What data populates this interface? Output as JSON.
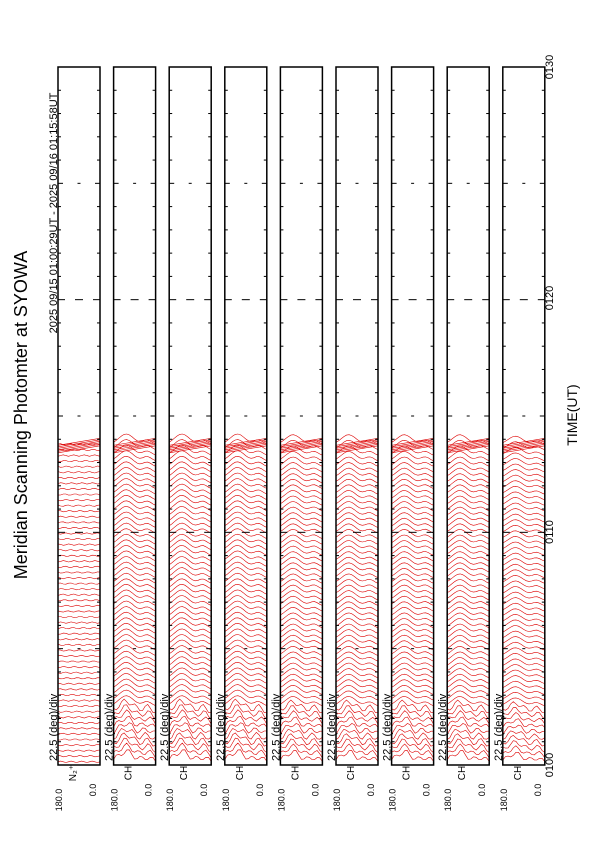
{
  "chart_data": {
    "type": "line",
    "title": "Meridian Scanning Photomter at SYOWA",
    "subtitle": "2025 09/16 01:15:58UT",
    "time_range_label": "2025 09/15 01:00:29UT - 2025 09/16 01:15:58UT",
    "xlabel": "TIME(UT)",
    "x_ticks": [
      "0100",
      "0110",
      "0120",
      "0130"
    ],
    "xlim": [
      "0100",
      "0130"
    ],
    "data_end_time": "0114",
    "y_range_label_top": "180.0",
    "y_range_label_bottom": "0.0",
    "scale_label": "22.5 (deg)/div",
    "trace_color": "#dd0000",
    "panels": [
      {
        "name": "1",
        "label": "N₂⁺",
        "profile_amplitude": 0.2
      },
      {
        "name": "2",
        "label": "CH",
        "profile_amplitude": 0.75
      },
      {
        "name": "3",
        "label": "CH",
        "profile_amplitude": 0.75
      },
      {
        "name": "4",
        "label": "CH",
        "profile_amplitude": 0.75
      },
      {
        "name": "5",
        "label": "CH",
        "profile_amplitude": 0.7
      },
      {
        "name": "6",
        "label": "CH",
        "profile_amplitude": 0.7
      },
      {
        "name": "7",
        "label": "CH",
        "profile_amplitude": 0.7
      },
      {
        "name": "8",
        "label": "CH",
        "profile_amplitude": 0.7
      },
      {
        "name": "9",
        "label": "CH",
        "profile_amplitude": 0.6
      }
    ]
  }
}
